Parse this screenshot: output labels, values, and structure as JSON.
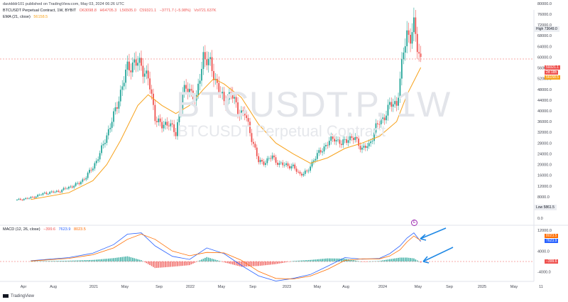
{
  "header": {
    "published": "davidddr101 published on TradingView.com, May 03, 2024 06:26 UTC",
    "symbol": "BTCUSDT Perpetual Contract, 1W, BYBIT",
    "o": "O63098.8",
    "h": "H64705.3",
    "l": "L56505.0",
    "c": "C59321.1",
    "change": "−3771.7 (−5.98%)",
    "vol": "Vol721.637K",
    "ema_label": "EMA (21, close)",
    "ema_value": "56158.5",
    "macd_label": "MACD (12, 26, close)",
    "macd_hist": "−399.6",
    "macd_line": "7623.9",
    "macd_signal": "8023.5"
  },
  "watermark": {
    "symbol": "BTCUSDT.P, 1W",
    "description": "BTCUSDT Perpetual Contract"
  },
  "badges": {
    "high_label": "High",
    "high_value": "73649.0",
    "price": "59321.1",
    "countdown": "2d 18h",
    "ema": "56158.5",
    "low_label": "Low",
    "low_value": "5861.5",
    "macd_signal": "8023.5",
    "macd_line": "7623.9",
    "macd_hist": "−399.6",
    "event": "E"
  },
  "footer": {
    "brand": "TradingView"
  },
  "colors": {
    "up": "#26a69a",
    "down": "#ef5350",
    "ema": "#f7a21b",
    "macd": "#2962ff",
    "signal": "#ff6d00",
    "hist_up": "#26a69a",
    "hist_down": "#ef5350",
    "annotation": "#1e88e5"
  },
  "chart_data": {
    "type": "candlestick",
    "interval": "1W",
    "price_axis": {
      "ticks": [
        0,
        4000,
        8000,
        12000,
        16000,
        20000,
        24000,
        28000,
        32000,
        36000,
        40000,
        44000,
        48000,
        52000,
        56000,
        60000,
        64000,
        68000,
        72000,
        76000,
        80000
      ],
      "range": [
        0,
        80000
      ]
    },
    "time_axis": {
      "labels": [
        "Apr",
        "Aug",
        "2021",
        "May",
        "Sep",
        "2022",
        "May",
        "Sep",
        "2023",
        "May",
        "Aug",
        "2024",
        "May",
        "Sep",
        "2025",
        "May",
        "11"
      ]
    },
    "price_series": {
      "weeks": [
        0,
        8,
        16,
        24,
        30,
        36,
        40,
        44,
        48,
        52,
        56,
        60,
        64,
        68,
        72,
        76,
        80,
        84,
        88,
        92,
        96,
        100,
        104,
        108,
        112,
        116,
        120,
        124,
        128,
        132,
        136,
        140,
        144,
        148,
        152,
        156,
        160,
        164,
        168,
        172,
        176,
        180,
        184,
        188,
        192,
        196,
        200,
        204,
        208,
        212,
        216,
        220,
        222,
        224,
        226,
        228,
        230,
        232,
        234
      ],
      "close": [
        6800,
        7600,
        9300,
        10000,
        11500,
        13000,
        15500,
        19000,
        24000,
        31000,
        38000,
        47000,
        56000,
        58000,
        57000,
        52000,
        38000,
        34000,
        36000,
        31000,
        47000,
        48000,
        44000,
        61000,
        57000,
        50000,
        43000,
        47000,
        40000,
        39000,
        30000,
        21000,
        21000,
        23000,
        20000,
        20000,
        19000,
        16500,
        17000,
        22000,
        25000,
        28000,
        30000,
        27500,
        30000,
        29500,
        26000,
        27000,
        34000,
        37000,
        42000,
        43000,
        51000,
        62000,
        69000,
        68000,
        71000,
        64000,
        59321
      ]
    },
    "ema": {
      "weeks": [
        8,
        30,
        44,
        52,
        60,
        70,
        76,
        84,
        92,
        100,
        108,
        114,
        120,
        130,
        140,
        150,
        160,
        170,
        180,
        190,
        200,
        210,
        220,
        226,
        234
      ],
      "values": [
        7000,
        9500,
        14000,
        20000,
        29000,
        42000,
        46000,
        42000,
        39000,
        42000,
        48000,
        52000,
        50000,
        45000,
        35000,
        28000,
        24000,
        20500,
        22500,
        26000,
        28000,
        30500,
        36000,
        46000,
        56158
      ]
    },
    "macd": {
      "axis": {
        "ticks": [
          -4000,
          4000,
          12000
        ]
      },
      "weeks": [
        8,
        30,
        44,
        56,
        64,
        72,
        80,
        90,
        100,
        110,
        120,
        130,
        140,
        150,
        160,
        170,
        180,
        190,
        200,
        210,
        216,
        222,
        226,
        230,
        234
      ],
      "line": [
        300,
        1500,
        3200,
        6500,
        10500,
        11000,
        6000,
        2000,
        800,
        5200,
        3000,
        -1500,
        -5500,
        -7500,
        -6500,
        -5000,
        -1800,
        1500,
        900,
        1200,
        3000,
        6000,
        9000,
        11000,
        7623.9
      ],
      "signal": [
        200,
        1200,
        2600,
        5200,
        8500,
        10500,
        8500,
        4000,
        2200,
        3500,
        3300,
        500,
        -3800,
        -6500,
        -6700,
        -5600,
        -3000,
        400,
        1000,
        1000,
        2100,
        4500,
        7500,
        9800,
        8023.5
      ]
    }
  }
}
